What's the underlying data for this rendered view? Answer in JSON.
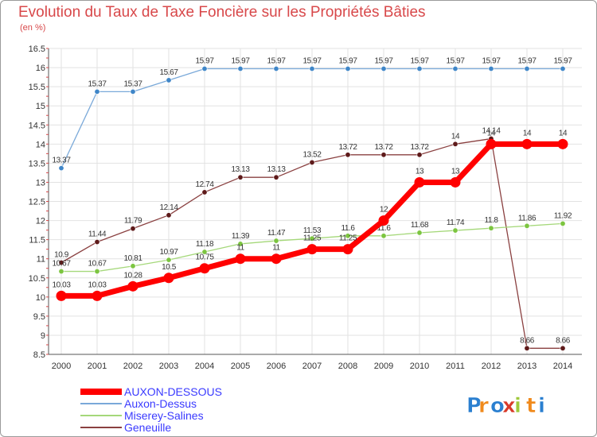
{
  "title": "Evolution du Taux de Taxe Foncière sur les Propriétés Bâties",
  "subtitle": "(en %)",
  "logo": {
    "text": "Proxiti",
    "letters": [
      "P",
      "r",
      "o",
      "x",
      "i",
      "t",
      "i"
    ],
    "colors": [
      "#2a7fd0",
      "#f08a1c",
      "#2a7fd0",
      "#d83a2a",
      "#9fc93c",
      "#f08a1c",
      "#2a7fd0"
    ]
  },
  "chart_data": {
    "type": "line",
    "x": [
      2000,
      2001,
      2002,
      2003,
      2004,
      2005,
      2006,
      2007,
      2008,
      2009,
      2010,
      2011,
      2012,
      2013,
      2014
    ],
    "xlabel": "",
    "ylabel": "",
    "ylim": [
      8.5,
      16.5
    ],
    "yticks": [
      8.5,
      9,
      9.5,
      10,
      10.5,
      11,
      11.5,
      12,
      12.5,
      13,
      13.5,
      14,
      14.5,
      15,
      15.5,
      16,
      16.5
    ],
    "grid": true,
    "legend_position": "bottom-left",
    "series": [
      {
        "name": "Auxon-Dessus",
        "color": "#7aa9d9",
        "marker_color": "#3f86c8",
        "values": [
          13.37,
          15.37,
          15.37,
          15.67,
          15.97,
          15.97,
          15.97,
          15.97,
          15.97,
          15.97,
          15.97,
          15.97,
          15.97,
          15.97,
          15.97
        ],
        "labels": [
          "13.37",
          "15.37",
          "15.37",
          "15.67",
          "15.97",
          "15.97",
          "15.97",
          "15.97",
          "15.97",
          "15.97",
          "15.97",
          "15.97",
          "15.97",
          "15.97",
          "15.97"
        ]
      },
      {
        "name": "Geneuille",
        "color": "#8a4040",
        "marker_color": "#5e1a1a",
        "values": [
          10.9,
          11.44,
          11.79,
          12.14,
          12.74,
          13.13,
          13.13,
          13.52,
          13.72,
          13.72,
          13.72,
          14,
          14.14,
          8.66,
          8.66
        ],
        "labels": [
          "10.9",
          "11.44",
          "11.79",
          "12.14",
          "12.74",
          "13.13",
          "13.13",
          "13.52",
          "13.72",
          "13.72",
          "13.72",
          "14",
          "14.14",
          "8.66",
          "8.66"
        ]
      },
      {
        "name": "Miserey-Salines",
        "color": "#a5d87a",
        "marker_color": "#7cc540",
        "values": [
          10.67,
          10.67,
          10.81,
          10.97,
          11.18,
          11.39,
          11.47,
          11.53,
          11.6,
          11.6,
          11.68,
          11.74,
          11.8,
          11.86,
          11.92
        ],
        "labels": [
          "10.67",
          "10.67",
          "10.81",
          "10.97",
          "11.18",
          "11.39",
          "11.47",
          "11.53",
          "11.6",
          "11.6",
          "11.68",
          "11.74",
          "11.8",
          "11.86",
          "11.92"
        ]
      },
      {
        "name": "AUXON-DESSOUS",
        "color": "#ff0000",
        "marker_color": "#ff0000",
        "values": [
          10.03,
          10.03,
          10.28,
          10.5,
          10.75,
          11,
          11,
          11.25,
          11.25,
          12,
          13,
          13,
          14,
          14,
          14
        ],
        "labels": [
          "10.03",
          "10.03",
          "10.28",
          "10.5",
          "10.75",
          "11",
          "11",
          "11.25",
          "11.25",
          "12",
          "13",
          "13",
          "14",
          "14",
          "14"
        ]
      }
    ],
    "legend": [
      {
        "name": "AUXON-DESSOUS",
        "color": "#ff0000",
        "thick": true
      },
      {
        "name": "Auxon-Dessus",
        "color": "#7aa9d9",
        "thick": false
      },
      {
        "name": "Miserey-Salines",
        "color": "#a5d87a",
        "thick": false
      },
      {
        "name": "Geneuille",
        "color": "#8a4040",
        "thick": false
      }
    ]
  }
}
